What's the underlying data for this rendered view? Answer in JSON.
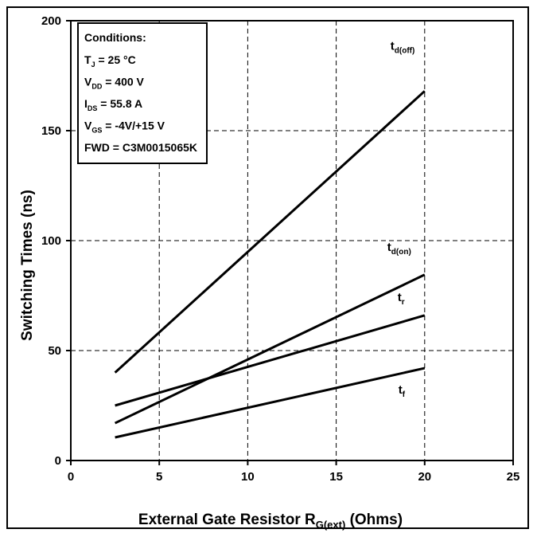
{
  "chart_data": {
    "type": "line",
    "xlabel_main": "External Gate Resistor R",
    "xlabel_sub": "G(ext)",
    "xlabel_tail": " (Ohms)",
    "ylabel": "Switching Times (ns)",
    "xlim": [
      0,
      25
    ],
    "ylim": [
      0,
      200
    ],
    "xticks": [
      "0",
      "5",
      "10",
      "15",
      "20",
      "25"
    ],
    "yticks": [
      "0",
      "50",
      "100",
      "150",
      "200"
    ],
    "grid": true,
    "series": [
      {
        "name_main": "t",
        "name_sub": "d(off)",
        "x": [
          2.5,
          20
        ],
        "y": [
          40,
          168
        ]
      },
      {
        "name_main": "t",
        "name_sub": "d(on)",
        "x": [
          2.5,
          20
        ],
        "y": [
          17,
          84.5
        ]
      },
      {
        "name_main": "t",
        "name_sub": "r",
        "x": [
          2.5,
          20
        ],
        "y": [
          25,
          66
        ]
      },
      {
        "name_main": "t",
        "name_sub": "f",
        "x": [
          2.5,
          20
        ],
        "y": [
          10.5,
          42
        ]
      }
    ],
    "conditions": {
      "title": "Conditions:",
      "lines": [
        {
          "main": "T",
          "sub": "J",
          "rest": " = 25 °C"
        },
        {
          "main": "V",
          "sub": "DD",
          "rest": " = 400 V"
        },
        {
          "main": "I",
          "sub": "DS",
          "rest": " = 55.8 A"
        },
        {
          "main": "V",
          "sub": "GS",
          "rest": " = -4V/+15 V"
        },
        {
          "main": "FWD = C3M0015065K",
          "sub": "",
          "rest": ""
        }
      ]
    }
  }
}
